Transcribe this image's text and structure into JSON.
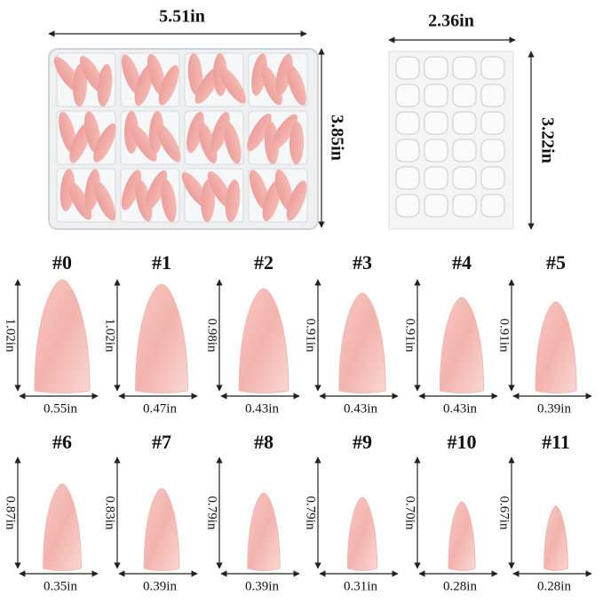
{
  "box": {
    "width": "5.51in",
    "height": "3.85in"
  },
  "sheet": {
    "width": "2.36in",
    "height": "3.22in"
  },
  "sizes": [
    {
      "label": "#0",
      "length": "1.02in",
      "width": "0.55in"
    },
    {
      "label": "#1",
      "length": "1.02in",
      "width": "0.47in"
    },
    {
      "label": "#2",
      "length": "0.98in",
      "width": "0.43in"
    },
    {
      "label": "#3",
      "length": "0.91in",
      "width": "0.43in"
    },
    {
      "label": "#4",
      "length": "0.91in",
      "width": "0.43in"
    },
    {
      "label": "#5",
      "length": "0.91in",
      "width": "0.39in"
    },
    {
      "label": "#6",
      "length": "0.87in",
      "width": "0.35in"
    },
    {
      "label": "#7",
      "length": "0.83in",
      "width": "0.39in"
    },
    {
      "label": "#8",
      "length": "0.79in",
      "width": "0.39in"
    },
    {
      "label": "#9",
      "length": "0.79in",
      "width": "0.31in"
    },
    {
      "label": "#10",
      "length": "0.70in",
      "width": "0.28in"
    },
    {
      "label": "#11",
      "length": "0.67in",
      "width": "0.28in"
    }
  ]
}
